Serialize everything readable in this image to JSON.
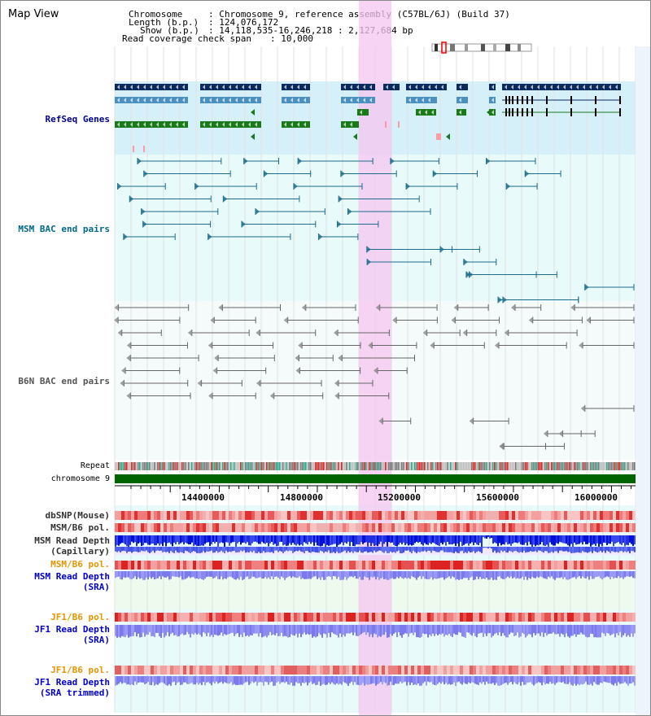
{
  "header": {
    "title": "Map View",
    "chromosome_key": "Chromosome",
    "chromosome_value": ": Chromosome 9, reference assembly (C57BL/6J) (Build 37)",
    "length_key": "Length (b.p.)",
    "length_value": ": 124,076,172",
    "show_key": "Show (b.p.)",
    "show_value": ": 14,118,535-16,246,218 : 2,127,684 bp",
    "coverage_key": "Read coverage check span",
    "coverage_value": ": 10,000"
  },
  "tracks": {
    "refseq": {
      "label": "RefSeq Genes",
      "color": "#00008b"
    },
    "msm_bac": {
      "label": "MSM BAC end pairs",
      "color": "#00688b"
    },
    "b6n_bac": {
      "label": "B6N BAC end pairs",
      "color": "#555555"
    },
    "repeat": {
      "label": "Repeat"
    },
    "chromosome": {
      "label": "chromosome 9"
    },
    "dbsnp": {
      "label": "dbSNP(Mouse)"
    },
    "msm_b6_pol": {
      "label": "MSM/B6 pol."
    },
    "msm_depth_cap": {
      "label": "MSM Read Depth\n(Capillary)"
    },
    "msm_b6_pol2": {
      "label": "MSM/B6 pol.",
      "color": "#e69500"
    },
    "msm_depth_sra": {
      "label": "MSM Read Depth\n(SRA)",
      "color": "#0000cd"
    },
    "jf1_b6_pol": {
      "label": "JF1/B6 pol.",
      "color": "#e69500"
    },
    "jf1_depth_sra": {
      "label": "JF1 Read Depth\n(SRA)",
      "color": "#0000cd"
    },
    "jf1_b6_pol2": {
      "label": "JF1/B6 pol.",
      "color": "#e69500"
    },
    "jf1_depth_trim": {
      "label": "JF1 Read Depth\n(SRA trimmed)",
      "color": "#0000cd"
    }
  },
  "axis": {
    "ticks": [
      "14400000",
      "14800000",
      "15200000",
      "15600000",
      "16000000"
    ]
  },
  "colors": {
    "highlight": "#f5c6f0",
    "refseq_bg": "#d6f0fa",
    "track_bg": "#e8fafa",
    "dark_gene": "#0a2a5e",
    "mid_gene": "#4a90c0",
    "green_gene": "#1a7a1a",
    "chromosome_bar": "#006400"
  }
}
